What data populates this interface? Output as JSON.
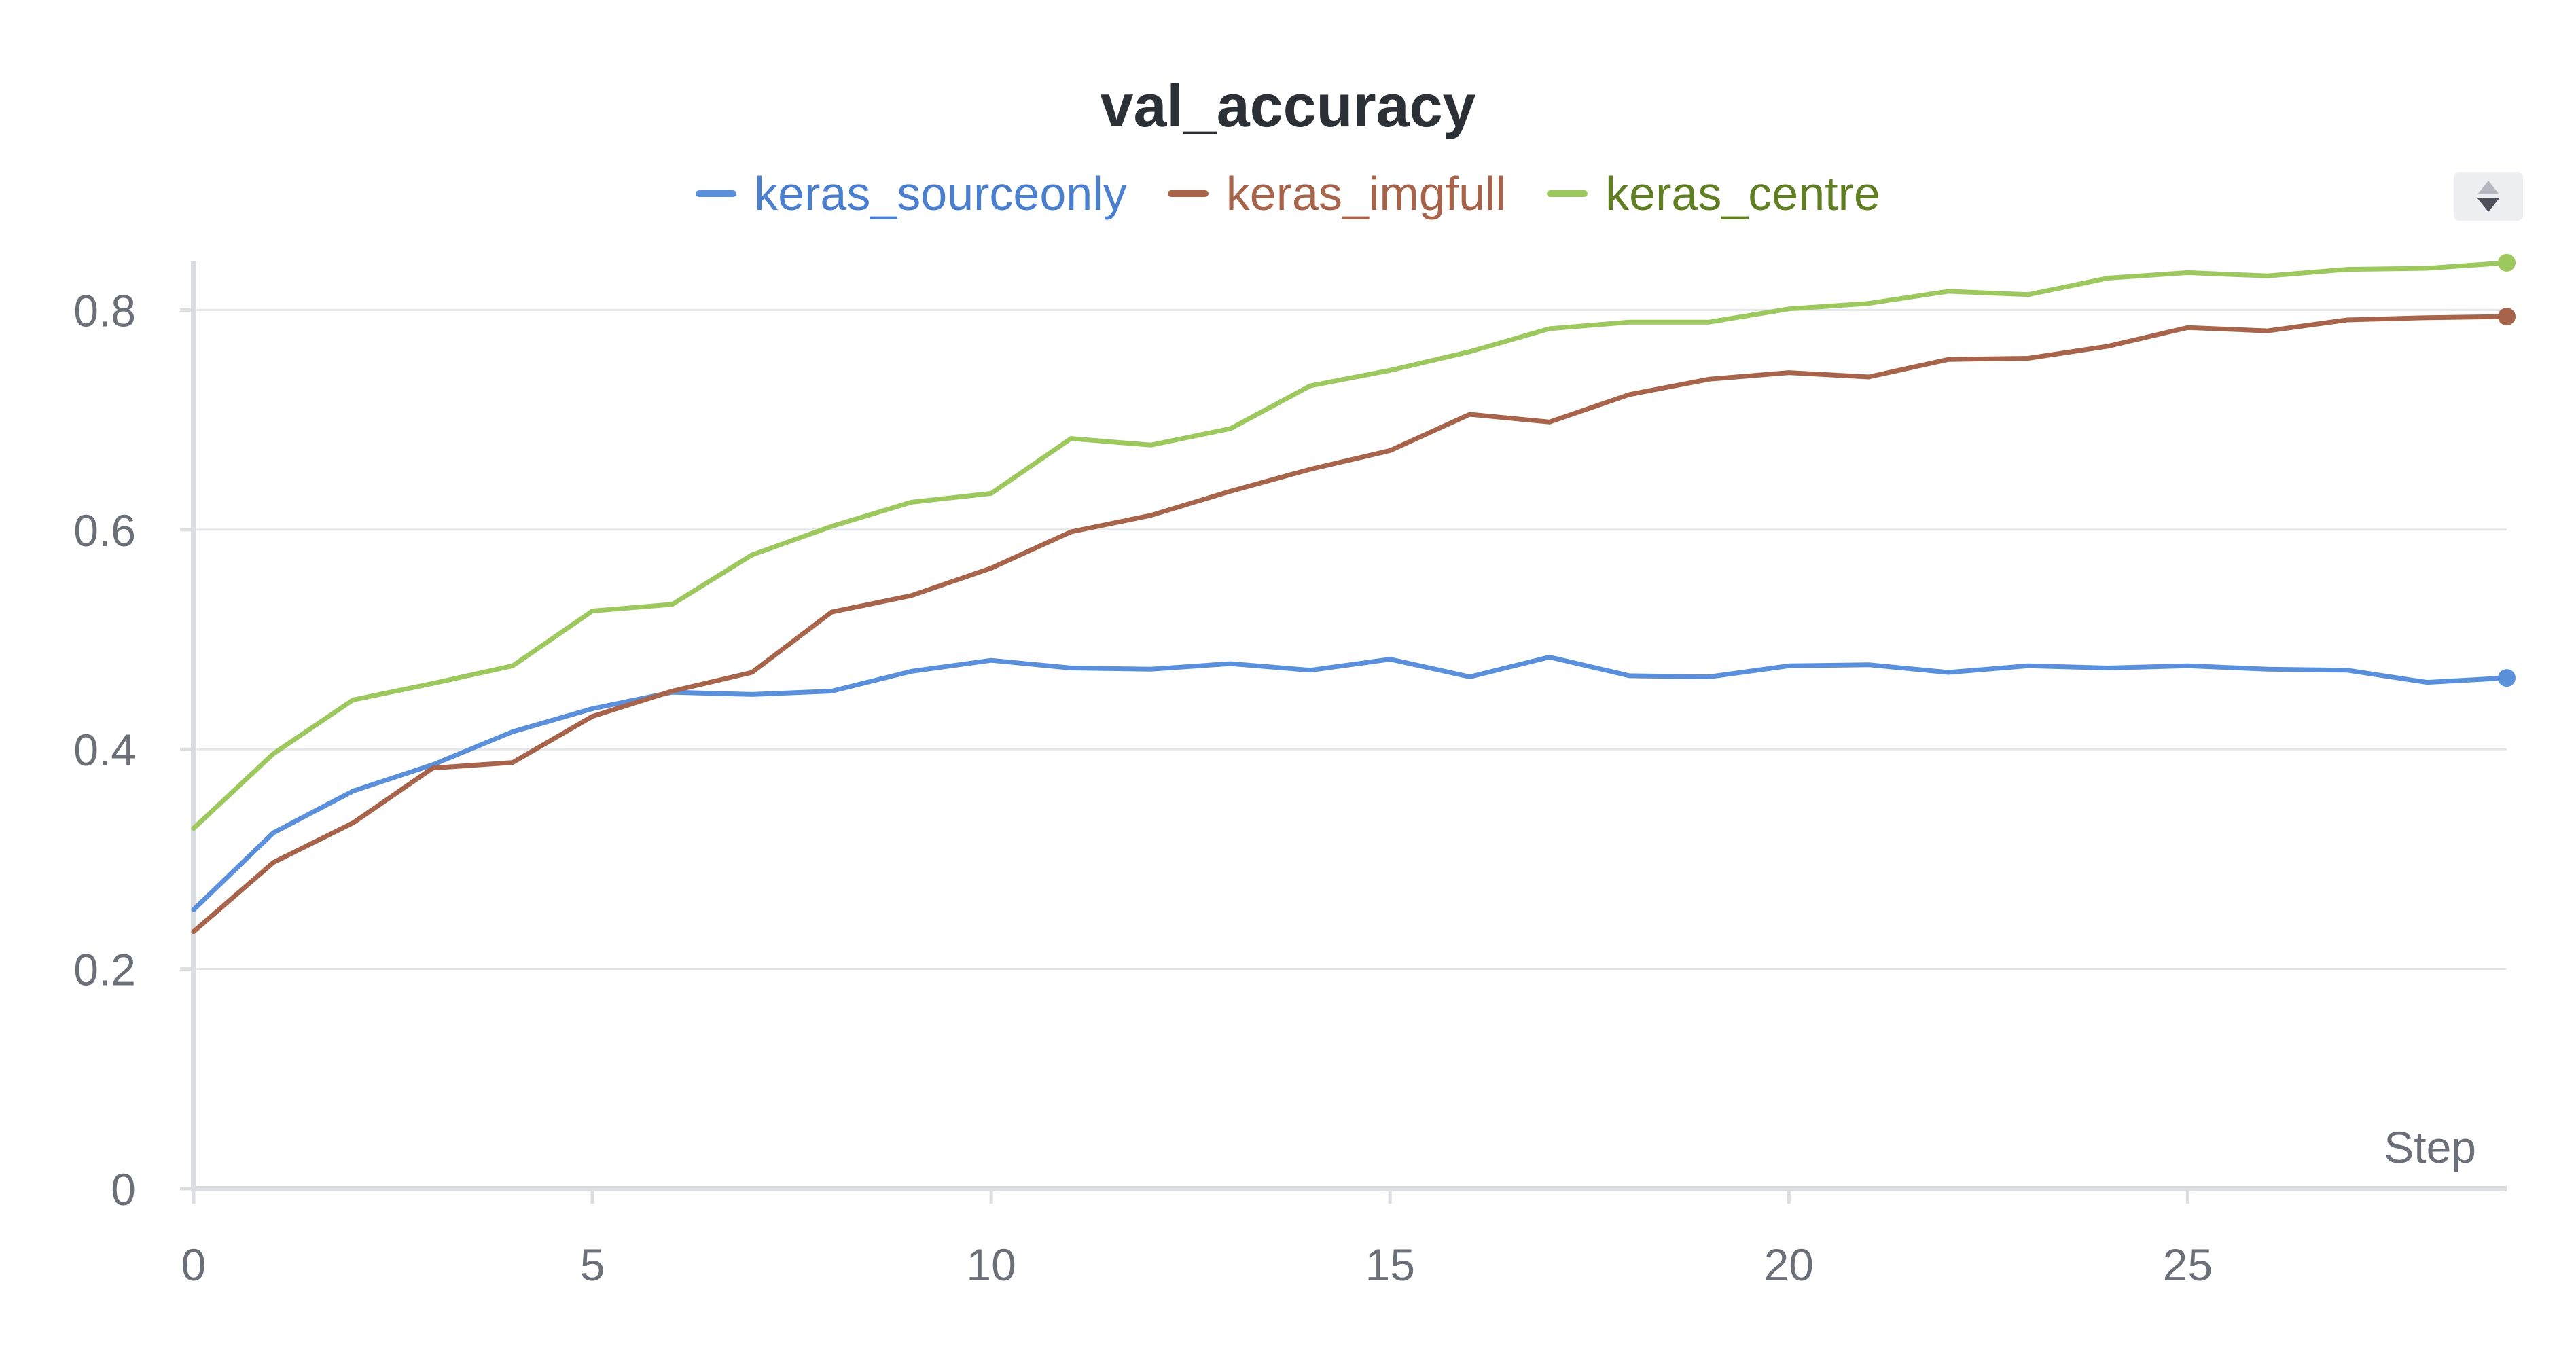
{
  "chart_data": {
    "type": "line",
    "title": "val_accuracy",
    "xlabel": "Step",
    "ylabel": "",
    "xlim": [
      0,
      29
    ],
    "ylim": [
      0,
      0.84
    ],
    "x_ticks": [
      0,
      5,
      10,
      15,
      20,
      25
    ],
    "y_ticks": [
      0,
      0.2,
      0.4,
      0.6,
      0.8
    ],
    "y_tick_labels": [
      "0",
      "0.2",
      "0.4",
      "0.6",
      "0.8"
    ],
    "grid": true,
    "legend_position": "top",
    "x": [
      0,
      1,
      2,
      3,
      4,
      5,
      6,
      7,
      8,
      9,
      10,
      11,
      12,
      13,
      14,
      15,
      16,
      17,
      18,
      19,
      20,
      21,
      22,
      23,
      24,
      25,
      26,
      27,
      28,
      29
    ],
    "series": [
      {
        "name": "keras_sourceonly",
        "color": "#5a8fdc",
        "label_color": "#4a7fd0",
        "values": [
          0.254,
          0.324,
          0.362,
          0.386,
          0.416,
          0.437,
          0.452,
          0.45,
          0.453,
          0.471,
          0.481,
          0.474,
          0.473,
          0.478,
          0.472,
          0.482,
          0.466,
          0.484,
          0.467,
          0.466,
          0.476,
          0.477,
          0.47,
          0.476,
          0.474,
          0.476,
          0.473,
          0.472,
          0.461,
          0.465
        ]
      },
      {
        "name": "keras_imgfull",
        "color": "#a8644a",
        "label_color": "#a8644a",
        "values": [
          0.234,
          0.297,
          0.333,
          0.383,
          0.388,
          0.43,
          0.453,
          0.47,
          0.525,
          0.54,
          0.565,
          0.598,
          0.613,
          0.635,
          0.655,
          0.672,
          0.705,
          0.698,
          0.723,
          0.737,
          0.743,
          0.739,
          0.755,
          0.756,
          0.767,
          0.784,
          0.781,
          0.791,
          0.793,
          0.794
        ]
      },
      {
        "name": "keras_centre",
        "color": "#9dc85e",
        "label_color": "#5f7f22",
        "values": [
          0.328,
          0.396,
          0.445,
          0.46,
          0.476,
          0.526,
          0.532,
          0.577,
          0.603,
          0.625,
          0.633,
          0.683,
          0.677,
          0.692,
          0.731,
          0.745,
          0.762,
          0.783,
          0.789,
          0.789,
          0.801,
          0.806,
          0.817,
          0.814,
          0.829,
          0.834,
          0.831,
          0.837,
          0.838,
          0.843
        ]
      }
    ]
  },
  "controls": {
    "sort_icon": "sort-arrows-icon"
  }
}
